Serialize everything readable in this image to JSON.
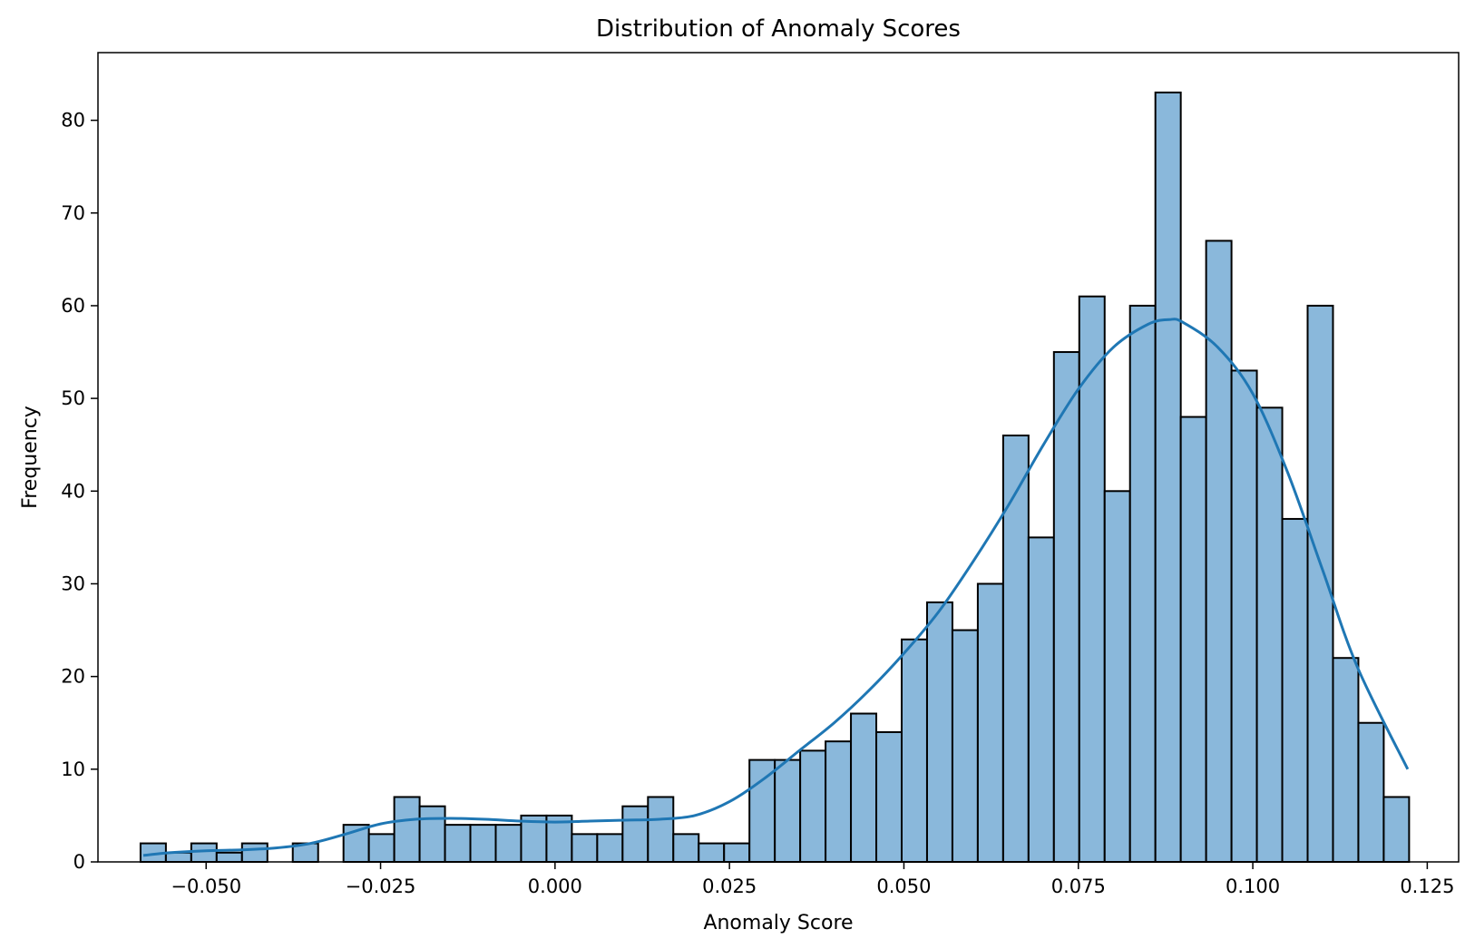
{
  "chart_data": {
    "type": "bar",
    "subtype": "histogram",
    "title": "Distribution of Anomaly Scores",
    "xlabel": "Anomaly Score",
    "ylabel": "Frequency",
    "xlim": [
      -0.0655,
      0.1295
    ],
    "ylim": [
      0,
      87.3
    ],
    "xticks": [
      -0.05,
      -0.025,
      0.0,
      0.025,
      0.05,
      0.075,
      0.1,
      0.125
    ],
    "xtick_labels": [
      "−0.050",
      "−0.025",
      "0.000",
      "0.025",
      "0.050",
      "0.075",
      "0.100",
      "0.125"
    ],
    "yticks": [
      0,
      10,
      20,
      30,
      40,
      50,
      60,
      70,
      80
    ],
    "ytick_labels": [
      "0",
      "10",
      "20",
      "30",
      "40",
      "50",
      "60",
      "70",
      "80"
    ],
    "bin_start": -0.0594,
    "bin_width": 0.003636,
    "values": [
      2,
      1,
      2,
      1,
      2,
      0,
      2,
      0,
      4,
      3,
      7,
      6,
      4,
      4,
      4,
      5,
      5,
      3,
      3,
      6,
      7,
      3,
      2,
      2,
      11,
      11,
      12,
      13,
      16,
      14,
      24,
      28,
      25,
      30,
      46,
      35,
      55,
      61,
      40,
      60,
      83,
      48,
      67,
      53,
      49,
      37,
      60,
      22,
      15,
      7
    ],
    "bar_color": "#8ab8db",
    "edge_color": "#000000",
    "kde": {
      "color": "#1f77b4",
      "x": [
        -0.059,
        -0.055,
        -0.05,
        -0.045,
        -0.04,
        -0.035,
        -0.03,
        -0.025,
        -0.02,
        -0.015,
        -0.01,
        -0.005,
        0.0,
        0.005,
        0.01,
        0.015,
        0.02,
        0.025,
        0.03,
        0.035,
        0.04,
        0.045,
        0.05,
        0.055,
        0.06,
        0.065,
        0.07,
        0.075,
        0.08,
        0.085,
        0.088,
        0.09,
        0.095,
        0.1,
        0.105,
        0.11,
        0.115,
        0.1222
      ],
      "y": [
        0.7,
        1.0,
        1.2,
        1.3,
        1.5,
        2.0,
        3.0,
        4.1,
        4.6,
        4.7,
        4.6,
        4.4,
        4.3,
        4.4,
        4.5,
        4.6,
        5.0,
        6.5,
        9.0,
        12.0,
        15.0,
        18.5,
        22.5,
        27.0,
        32.5,
        38.5,
        45.0,
        51.0,
        55.5,
        58.0,
        58.5,
        58.2,
        55.5,
        50.5,
        42.0,
        31.5,
        21.0,
        10.0
      ]
    },
    "grid": false,
    "legend": false
  }
}
